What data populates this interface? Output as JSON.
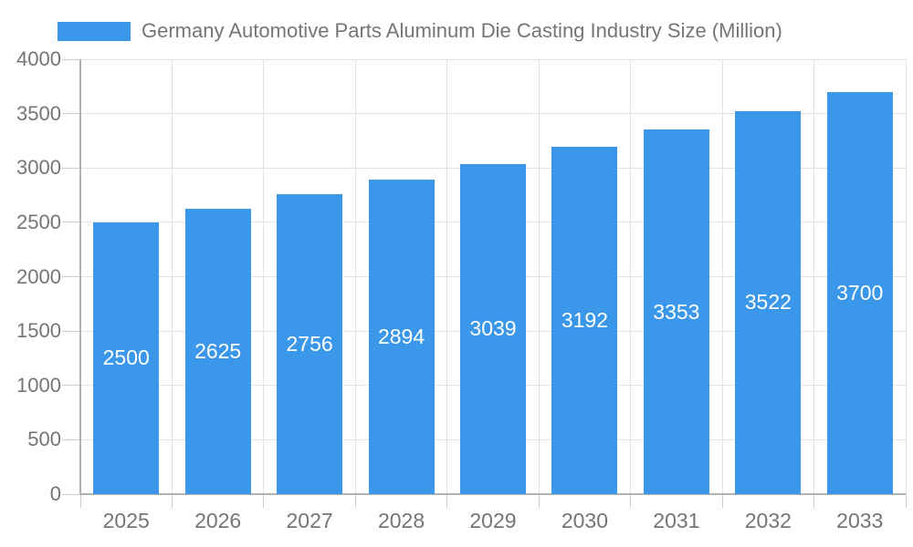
{
  "legend": {
    "position": "top",
    "swatch_color": "#3B97E9"
  },
  "chart_data": {
    "type": "bar",
    "title": "Germany Automotive Parts Aluminum Die Casting Industry Size (Million)",
    "categories": [
      "2025",
      "2026",
      "2027",
      "2028",
      "2029",
      "2030",
      "2031",
      "2032",
      "2033"
    ],
    "values": [
      2500,
      2625,
      2756,
      2894,
      3039,
      3192,
      3353,
      3522,
      3700
    ],
    "series": [
      {
        "name": "Germany Automotive Parts Aluminum Die Casting Industry Size (Million)",
        "values": [
          2500,
          2625,
          2756,
          2894,
          3039,
          3192,
          3353,
          3522,
          3700
        ]
      }
    ],
    "xlabel": "",
    "ylabel": "",
    "ylim": [
      0,
      4000
    ],
    "ytick_step": 500,
    "yticks": [
      0,
      500,
      1000,
      1500,
      2000,
      2500,
      3000,
      3500,
      4000
    ],
    "grid": true,
    "legend_position": "top",
    "value_labels": "inside-center",
    "colors": {
      "bar": "#3B97E9",
      "value_label": "#FFFFFF",
      "text": "#757575",
      "gridline": "#E3E3E3",
      "axis_line": "#B0B0B0",
      "tick": "#CCCCCC"
    }
  }
}
